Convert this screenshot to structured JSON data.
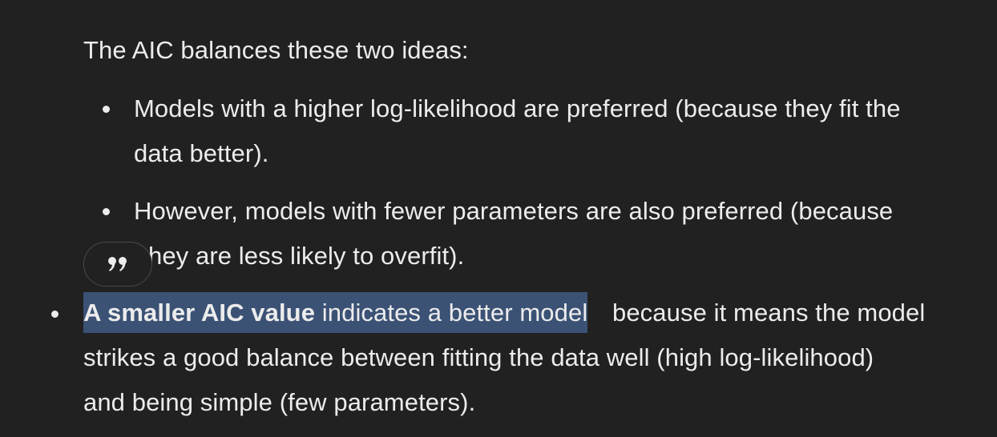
{
  "intro": "The AIC balances these two ideas:",
  "sub_bullets": [
    {
      "line1": "Models with a higher log-likelihood are preferred (because they fit the",
      "line2": "data better)."
    },
    {
      "line1": "However, models with fewer parameters are also preferred (because",
      "line2": "hey are less likely to overfit)."
    }
  ],
  "main_bullet": {
    "bold": "A smaller AIC value",
    "selected_rest": " indicates a better model",
    "rest_line1": "because it means the model",
    "line2": "strikes a good balance between fitting the data well (high log-likelihood)",
    "line3": "and being simple (few parameters)."
  },
  "quote_button": {
    "icon": "quote-icon",
    "glyph": "”"
  },
  "colors": {
    "background": "#212121",
    "text": "#ececec",
    "selection": "#3b5275"
  }
}
